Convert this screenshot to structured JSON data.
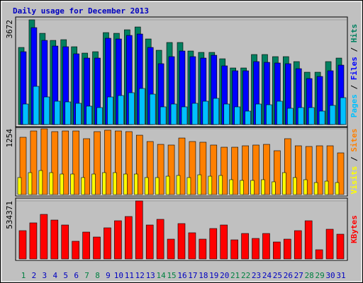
{
  "chart_data": [
    {
      "type": "bar",
      "title": "Daily usage for December 2013",
      "ylim": [
        0,
        3672
      ],
      "yticks": [
        3672
      ],
      "legend_separator": " / ",
      "series": [
        {
          "name": "Hits",
          "color": "#008060",
          "values": [
            2703,
            3672,
            3199,
            2951,
            2976,
            2728,
            2505,
            2554,
            3224,
            3199,
            3323,
            3422,
            3001,
            2604,
            2877,
            2877,
            2579,
            2530,
            2530,
            2306,
            1984,
            1984,
            2455,
            2455,
            2381,
            2381,
            2207,
            1835,
            1835,
            2207,
            2331
          ]
        },
        {
          "name": "Files",
          "color": "#0000ff",
          "values": [
            2554,
            3398,
            2951,
            2753,
            2728,
            2480,
            2331,
            2331,
            3026,
            3001,
            3125,
            3174,
            2703,
            2133,
            2381,
            2579,
            2381,
            2331,
            2430,
            2058,
            1885,
            1885,
            2207,
            2182,
            2158,
            2133,
            1959,
            1612,
            1686,
            1885,
            2083
          ]
        },
        {
          "name": "Pages",
          "color": "#00c0ff",
          "values": [
            719,
            1339,
            967,
            818,
            794,
            744,
            645,
            595,
            967,
            1017,
            1116,
            1265,
            1066,
            620,
            719,
            620,
            744,
            818,
            918,
            719,
            620,
            471,
            719,
            694,
            818,
            570,
            595,
            595,
            471,
            670,
            942
          ]
        }
      ]
    },
    {
      "type": "bar",
      "ylim": [
        0,
        1254
      ],
      "yticks": [
        1254
      ],
      "legend_separator": " / ",
      "series": [
        {
          "name": "Sites",
          "color": "#ff8000",
          "values": [
            1092,
            1213,
            1254,
            1200,
            1213,
            1213,
            1065,
            1200,
            1227,
            1213,
            1200,
            1132,
            1011,
            957,
            944,
            1078,
            1011,
            998,
            944,
            903,
            903,
            930,
            944,
            957,
            836,
            1065,
            930,
            917,
            930,
            930,
            795
          ]
        },
        {
          "name": "Visits",
          "color": "#ffff00",
          "values": [
            324,
            418,
            458,
            418,
            391,
            391,
            324,
            391,
            418,
            418,
            391,
            391,
            324,
            324,
            350,
            364,
            324,
            377,
            350,
            364,
            283,
            270,
            270,
            283,
            243,
            418,
            324,
            283,
            229,
            256,
            229
          ]
        }
      ]
    },
    {
      "type": "bar",
      "ylim": [
        0,
        534371
      ],
      "yticks": [
        534371
      ],
      "categories": [
        "1",
        "2",
        "3",
        "4",
        "5",
        "6",
        "7",
        "8",
        "9",
        "10",
        "11",
        "12",
        "13",
        "14",
        "15",
        "16",
        "17",
        "18",
        "19",
        "20",
        "21",
        "22",
        "23",
        "24",
        "25",
        "26",
        "27",
        "28",
        "29",
        "30",
        "31"
      ],
      "label_colors": [
        "#008040",
        "#0000c0",
        "#0000c0",
        "#0000c0",
        "#0000c0",
        "#0000c0",
        "#008040",
        "#008040",
        "#0000c0",
        "#0000c0",
        "#0000c0",
        "#0000c0",
        "#0000c0",
        "#008040",
        "#008040",
        "#0000c0",
        "#0000c0",
        "#0000c0",
        "#0000c0",
        "#0000c0",
        "#008040",
        "#008040",
        "#0000c0",
        "#0000c0",
        "#0000c0",
        "#0000c0",
        "#0000c0",
        "#008040",
        "#008040",
        "#0000c0",
        "#0000c0"
      ],
      "series": [
        {
          "name": "KBytes",
          "color": "#ff0000",
          "values": [
            260680,
            332367,
            410571,
            358435,
            312816,
            162925,
            247646,
            202027,
            286748,
            351918,
            391020,
            534371,
            312816,
            364952,
            182476,
            325850,
            241129,
            182476,
            280231,
            312816,
            175959,
            234612,
            188993,
            234612,
            156408,
            182476,
            260680,
            351918,
            84721,
            273714,
            228095
          ]
        }
      ]
    }
  ]
}
